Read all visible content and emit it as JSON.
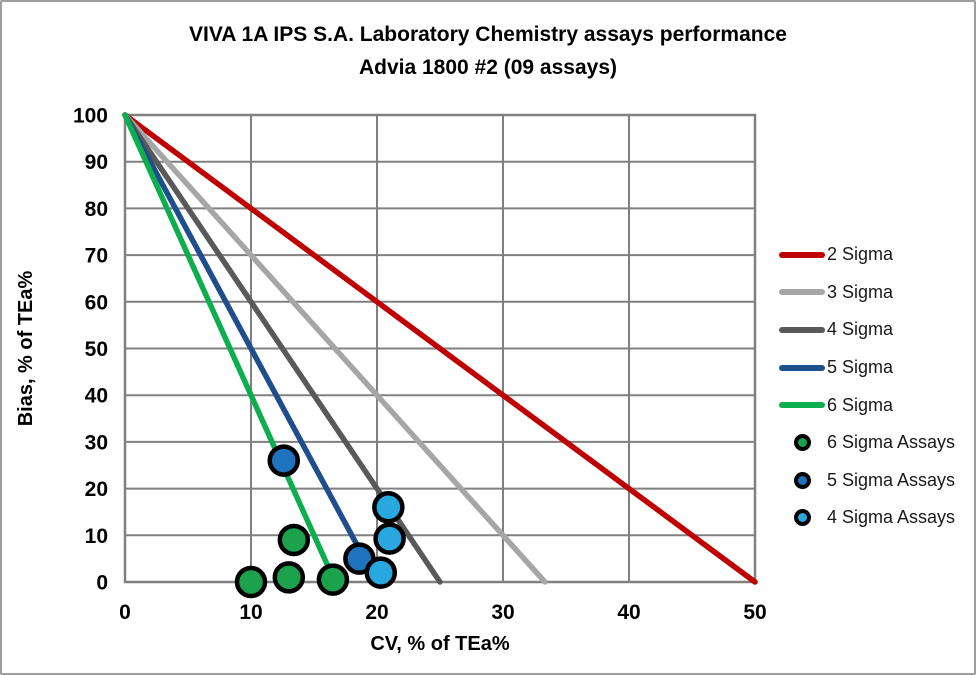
{
  "chart_data": {
    "type": "scatter",
    "title": "VIVA 1A IPS S.A. Laboratory Chemistry assays performance",
    "subtitle": "Advia 1800 #2 (09 assays)",
    "xlabel": "CV, % of TEa%",
    "ylabel": "Bias, % of TEa%",
    "xlim": [
      0,
      50
    ],
    "ylim": [
      0,
      100
    ],
    "x_ticks": [
      0,
      10,
      20,
      30,
      40,
      50
    ],
    "y_ticks": [
      0,
      10,
      20,
      30,
      40,
      50,
      60,
      70,
      80,
      90,
      100
    ],
    "grid": true,
    "legend_position": "right",
    "series": [
      {
        "name": "2 Sigma",
        "type": "line",
        "color": "#c00000",
        "points": [
          [
            0,
            100
          ],
          [
            50,
            0
          ]
        ]
      },
      {
        "name": "3 Sigma",
        "type": "line",
        "color": "#a6a6a6",
        "points": [
          [
            0,
            100
          ],
          [
            33.33,
            0
          ]
        ]
      },
      {
        "name": "4 Sigma",
        "type": "line",
        "color": "#595959",
        "points": [
          [
            0,
            100
          ],
          [
            25,
            0
          ]
        ]
      },
      {
        "name": "5 Sigma",
        "type": "line",
        "color": "#1f4e8c",
        "points": [
          [
            0,
            100
          ],
          [
            20,
            0
          ]
        ]
      },
      {
        "name": "6 Sigma",
        "type": "line",
        "color": "#0dae4d",
        "points": [
          [
            0,
            100
          ],
          [
            16.67,
            0
          ]
        ]
      },
      {
        "name": "6 Sigma Assays",
        "type": "scatter",
        "color": "#1ca14d",
        "points": [
          [
            10,
            0
          ],
          [
            13,
            1
          ],
          [
            13.4,
            9
          ],
          [
            16.5,
            0.5
          ]
        ]
      },
      {
        "name": "5 Sigma Assays",
        "type": "scatter",
        "color": "#1e73be",
        "points": [
          [
            12.6,
            26
          ],
          [
            18.6,
            5
          ]
        ]
      },
      {
        "name": "4 Sigma Assays",
        "type": "scatter",
        "color": "#29a8e0",
        "points": [
          [
            20.9,
            16
          ],
          [
            21,
            9.3
          ],
          [
            20.3,
            2
          ]
        ]
      }
    ],
    "style": {
      "grid_color": "#808080",
      "axis_text_color": "#000000",
      "legend_text_color": "#1a1a1a",
      "marker_border_color": "#000000"
    }
  }
}
